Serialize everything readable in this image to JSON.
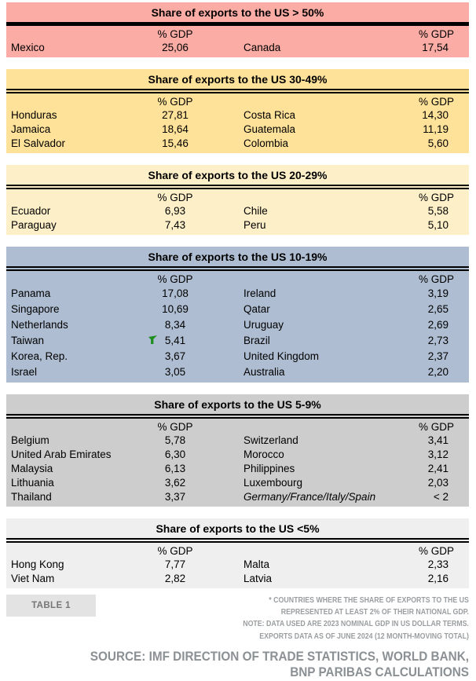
{
  "chart_data": {
    "type": "table",
    "unit": "% GDP",
    "flag_color": "#1E8E1E",
    "groups": [
      {
        "title": "Share of exports to the US > 50%",
        "bg": "#FBACA4",
        "col_header": "% GDP",
        "rows": [
          {
            "c1": "Mexico",
            "v1": "25,06",
            "c2": "Canada",
            "v2": "17,54"
          }
        ]
      },
      {
        "title": "Share of exports to the US 30-49%",
        "bg": "#FFE299",
        "col_header": "% GDP",
        "rows": [
          {
            "c1": "Honduras",
            "v1": "27,81",
            "c2": "Costa Rica",
            "v2": "14,30"
          },
          {
            "c1": "Jamaica",
            "v1": "18,64",
            "c2": "Guatemala",
            "v2": "11,19"
          },
          {
            "c1": "El Salvador",
            "v1": "15,46",
            "c2": "Colombia",
            "v2": "5,60"
          }
        ]
      },
      {
        "title": "Share of exports to the US 20-29%",
        "bg": "#FDF0C9",
        "col_header": "% GDP",
        "rows": [
          {
            "c1": "Ecuador",
            "v1": "6,93",
            "c2": "Chile",
            "v2": "5,58"
          },
          {
            "c1": "Paraguay",
            "v1": "7,43",
            "c2": "Peru",
            "v2": "5,10"
          }
        ]
      },
      {
        "title": "Share of exports to the US 10-19%",
        "bg": "#AEBDD1",
        "col_header": "% GDP",
        "rows": [
          {
            "c1": "Panama",
            "v1": "17,08",
            "c2": "Ireland",
            "v2": "3,19"
          },
          {
            "c1": "Singapore",
            "v1": "10,69",
            "c2": "Qatar",
            "v2": "2,65"
          },
          {
            "c1": "Netherlands",
            "v1": "8,34",
            "c2": "Uruguay",
            "v2": "2,69"
          },
          {
            "c1": "Taiwan",
            "v1": "5,41",
            "c2": "Brazil",
            "v2": "2,73"
          },
          {
            "c1": "Korea, Rep.",
            "v1": "3,67",
            "c2": "United Kingdom",
            "v2": "2,37"
          },
          {
            "c1": "Israel",
            "v1": "3,05",
            "c2": "Australia",
            "v2": "2,20"
          }
        ]
      },
      {
        "title": "Share of exports to the US 5-9%",
        "bg": "#CDCDCD",
        "col_header": "% GDP",
        "rows": [
          {
            "c1": "Belgium",
            "v1": "5,78",
            "c2": "Switzerland",
            "v2": "3,41"
          },
          {
            "c1": "United Arab Emirates",
            "v1": "6,30",
            "c2": "Morocco",
            "v2": "3,12"
          },
          {
            "c1": "Malaysia",
            "v1": "6,13",
            "c2": "Philippines",
            "v2": "2,41"
          },
          {
            "c1": "Lithuania",
            "v1": "3,62",
            "c2": "Luxembourg",
            "v2": "2,03"
          },
          {
            "c1": "Thailand",
            "v1": "3,37",
            "c2": "Germany/France/Italy/Spain",
            "v2": "< 2"
          }
        ]
      },
      {
        "title": "Share of exports to the US <5%",
        "bg": "#EFEFEF",
        "col_header": "% GDP",
        "rows": [
          {
            "c1": "Hong Kong",
            "v1": "7,77",
            "c2": "Malta",
            "v2": "2,33"
          },
          {
            "c1": "Viet Nam",
            "v1": "2,82",
            "c2": "Latvia",
            "v2": "2,16"
          }
        ]
      }
    ]
  },
  "footer": {
    "table_label": "TABLE 1",
    "notes": [
      "* COUNTRIES WHERE THE SHARE OF EXPORTS TO THE US",
      "REPRESENTED AT LEAST 2% OF THEIR NATIONAL GDP.",
      "NOTE: DATA USED ARE 2023 NOMINAL GDP IN US DOLLAR TERMS.",
      "EXPORTS DATA AS OF JUNE 2024 (12 MONTH-MOVING TOTAL)"
    ],
    "source_lines": [
      "SOURCE: IMF DIRECTION OF TRADE STATISTICS, WORLD BANK,",
      "BNP PARIBAS CALCULATIONS"
    ]
  }
}
